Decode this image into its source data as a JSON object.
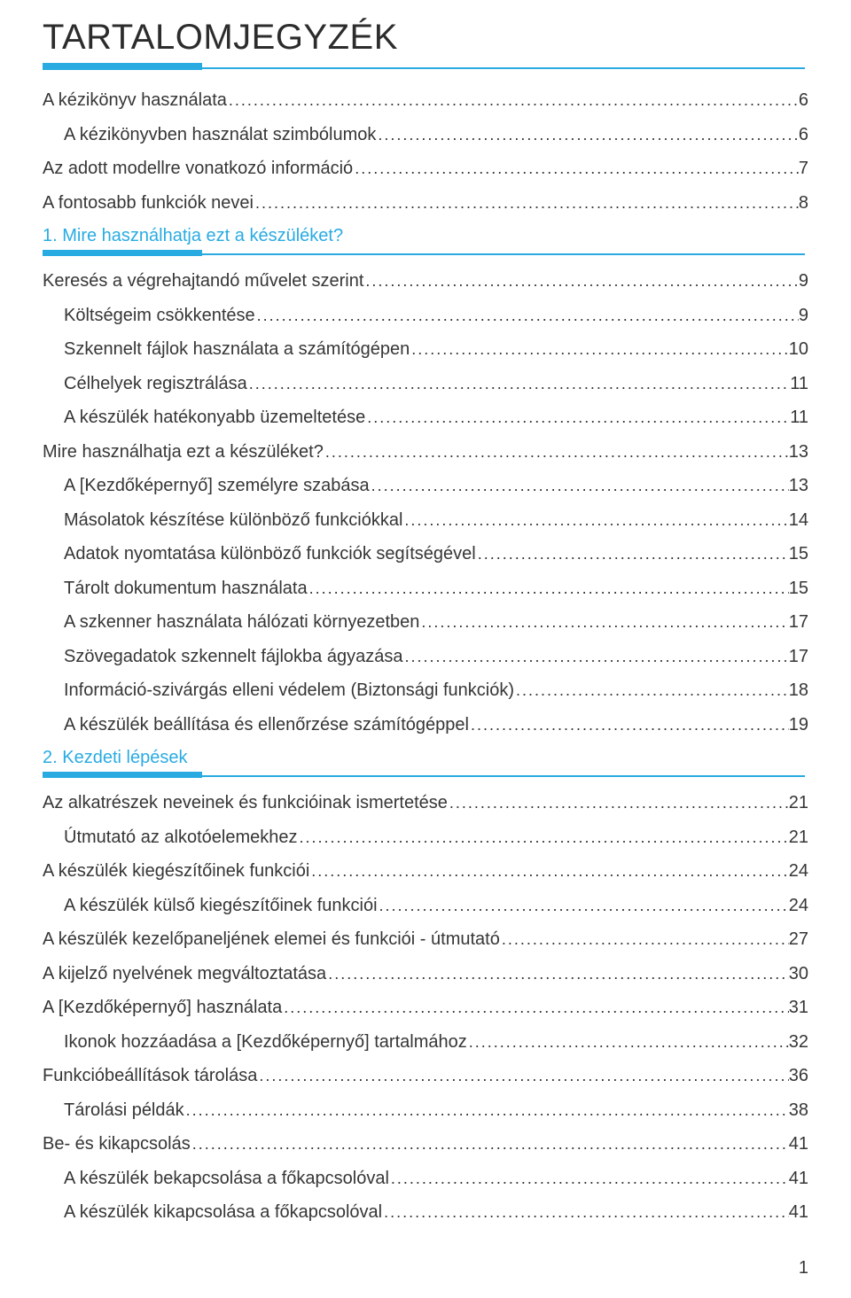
{
  "colors": {
    "accent": "#29abe2",
    "text": "#363636",
    "title": "#2c2c2c",
    "background": "#ffffff"
  },
  "typography": {
    "title_size_pt": 30,
    "body_size_pt": 15,
    "font_family": "Futura / Century Gothic"
  },
  "title": "TARTALOMJEGYZÉK",
  "page_number": "1",
  "entries": [
    {
      "label": "A kézikönyv használata",
      "page": "6",
      "indent": 0
    },
    {
      "label": "A kézikönyvben használat szimbólumok",
      "page": "6",
      "indent": 1
    },
    {
      "label": "Az adott modellre vonatkozó információ",
      "page": "7",
      "indent": 0
    },
    {
      "label": "A fontosabb funkciók nevei",
      "page": "8",
      "indent": 0
    }
  ],
  "section1": {
    "label": "1. Mire használhatja ezt a készüléket?"
  },
  "entries1": [
    {
      "label": "Keresés a végrehajtandó művelet szerint",
      "page": "9",
      "indent": 0
    },
    {
      "label": "Költségeim csökkentése",
      "page": "9",
      "indent": 1
    },
    {
      "label": "Szkennelt fájlok használata a számítógépen",
      "page": "10",
      "indent": 1
    },
    {
      "label": "Célhelyek regisztrálása",
      "page": "11",
      "indent": 1
    },
    {
      "label": "A készülék hatékonyabb üzemeltetése",
      "page": "11",
      "indent": 1
    },
    {
      "label": "Mire használhatja ezt a készüléket?",
      "page": "13",
      "indent": 0
    },
    {
      "label": "A [Kezdőképernyő] személyre szabása",
      "page": "13",
      "indent": 1
    },
    {
      "label": "Másolatok készítése különböző funkciókkal",
      "page": "14",
      "indent": 1
    },
    {
      "label": "Adatok nyomtatása különböző funkciók segítségével",
      "page": "15",
      "indent": 1
    },
    {
      "label": "Tárolt dokumentum használata",
      "page": "15",
      "indent": 1
    },
    {
      "label": "A szkenner használata hálózati környezetben",
      "page": "17",
      "indent": 1
    },
    {
      "label": "Szövegadatok szkennelt fájlokba ágyazása",
      "page": "17",
      "indent": 1
    },
    {
      "label": "Információ-szivárgás elleni védelem (Biztonsági funkciók)",
      "page": "18",
      "indent": 1
    },
    {
      "label": "A készülék beállítása és ellenőrzése számítógéppel",
      "page": "19",
      "indent": 1
    }
  ],
  "section2": {
    "label": "2. Kezdeti lépések"
  },
  "entries2": [
    {
      "label": "Az alkatrészek neveinek és funkcióinak ismertetése",
      "page": "21",
      "indent": 0
    },
    {
      "label": "Útmutató az alkotóelemekhez",
      "page": "21",
      "indent": 1
    },
    {
      "label": "A készülék kiegészítőinek funkciói",
      "page": "24",
      "indent": 0
    },
    {
      "label": "A készülék külső kiegészítőinek funkciói",
      "page": "24",
      "indent": 1
    },
    {
      "label": "A készülék kezelőpaneljének elemei és funkciói - útmutató",
      "page": "27",
      "indent": 0
    },
    {
      "label": "A kijelző nyelvének megváltoztatása",
      "page": "30",
      "indent": 0
    },
    {
      "label": "A [Kezdőképernyő] használata",
      "page": "31",
      "indent": 0
    },
    {
      "label": "Ikonok hozzáadása a [Kezdőképernyő] tartalmához",
      "page": "32",
      "indent": 1
    },
    {
      "label": "Funkcióbeállítások tárolása",
      "page": "36",
      "indent": 0
    },
    {
      "label": "Tárolási példák",
      "page": "38",
      "indent": 1
    },
    {
      "label": "Be- és kikapcsolás",
      "page": "41",
      "indent": 0
    },
    {
      "label": "A készülék bekapcsolása a főkapcsolóval",
      "page": "41",
      "indent": 1
    },
    {
      "label": "A készülék kikapcsolása a főkapcsolóval",
      "page": "41",
      "indent": 1
    }
  ]
}
